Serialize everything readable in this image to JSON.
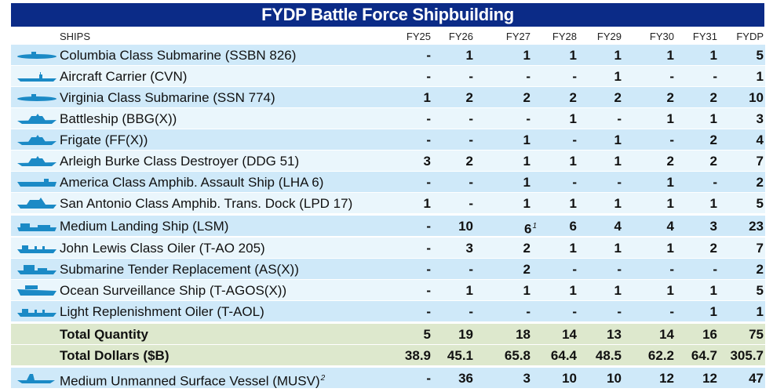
{
  "title": "FYDP Battle Force Shipbuilding",
  "header": {
    "ships": "SHIPS",
    "years": [
      "FY25",
      "FY26",
      "FY27",
      "FY28",
      "FY29",
      "FY30",
      "FY31",
      "FYDP"
    ]
  },
  "rows": [
    {
      "name": "Columbia Class Submarine (SSBN 826)",
      "icon": "submarine-icon",
      "values": [
        "-",
        "1",
        "1",
        "1",
        "1",
        "1",
        "1",
        "5"
      ]
    },
    {
      "name": "Aircraft Carrier (CVN)",
      "icon": "aircraft-carrier-icon",
      "values": [
        "-",
        "-",
        "-",
        "-",
        "1",
        "-",
        "-",
        "1"
      ]
    },
    {
      "name": "Virginia Class Submarine (SSN 774)",
      "icon": "submarine-icon",
      "values": [
        "1",
        "2",
        "2",
        "2",
        "2",
        "2",
        "2",
        "10"
      ]
    },
    {
      "name": "Battleship (BBG(X))",
      "icon": "battleship-icon",
      "values": [
        "-",
        "-",
        "-",
        "1",
        "-",
        "1",
        "1",
        "3"
      ]
    },
    {
      "name": "Frigate (FF(X))",
      "icon": "frigate-icon",
      "values": [
        "-",
        "-",
        "1",
        "-",
        "1",
        "-",
        "2",
        "4"
      ]
    },
    {
      "name": "Arleigh Burke Class Destroyer (DDG 51)",
      "icon": "destroyer-icon",
      "values": [
        "3",
        "2",
        "1",
        "1",
        "1",
        "2",
        "2",
        "7"
      ]
    },
    {
      "name": "America Class Amphib. Assault Ship (LHA 6)",
      "icon": "amphibious-assault-ship-icon",
      "values": [
        "-",
        "-",
        "1",
        "-",
        "-",
        "1",
        "-",
        "2"
      ]
    },
    {
      "name": "San Antonio Class Amphib. Trans. Dock (LPD 17)",
      "icon": "transport-dock-icon",
      "values": [
        "1",
        "-",
        "1",
        "1",
        "1",
        "1",
        "1",
        "5"
      ]
    },
    {
      "name": "Medium Landing Ship (LSM)",
      "icon": "landing-ship-icon",
      "values": [
        "-",
        "10",
        "6",
        "6",
        "4",
        "4",
        "3",
        "23"
      ],
      "footnote_col": 2,
      "footnote": "1"
    },
    {
      "name": "John Lewis Class Oiler (T-AO 205)",
      "icon": "oiler-icon",
      "values": [
        "-",
        "3",
        "2",
        "1",
        "1",
        "1",
        "2",
        "7"
      ]
    },
    {
      "name": "Submarine Tender Replacement (AS(X))",
      "icon": "submarine-tender-icon",
      "values": [
        "-",
        "-",
        "2",
        "-",
        "-",
        "-",
        "-",
        "2"
      ]
    },
    {
      "name": "Ocean Surveillance Ship (T-AGOS(X))",
      "icon": "surveillance-ship-icon",
      "values": [
        "-",
        "1",
        "1",
        "1",
        "1",
        "1",
        "1",
        "5"
      ]
    },
    {
      "name": "Light Replenishment Oiler (T-AOL)",
      "icon": "replenishment-oiler-icon",
      "values": [
        "-",
        "-",
        "-",
        "-",
        "-",
        "-",
        "1",
        "1"
      ]
    }
  ],
  "totals": [
    {
      "name": "Total Quantity",
      "values": [
        "5",
        "19",
        "18",
        "14",
        "13",
        "14",
        "16",
        "75"
      ]
    },
    {
      "name": "Total Dollars ($B)",
      "values": [
        "38.9",
        "45.1",
        "65.8",
        "64.4",
        "48.5",
        "62.2",
        "64.7",
        "305.7"
      ]
    }
  ],
  "musv": {
    "name": "Medium Unmanned Surface Vessel (MUSV)",
    "footnote": "2",
    "icon": "unmanned-vessel-icon",
    "values": [
      "-",
      "36",
      "3",
      "10",
      "10",
      "12",
      "12",
      "47"
    ]
  },
  "colors": {
    "title_bg": "#0b2b87",
    "row_dark": "#cfe9f9",
    "row_light": "#eaf6fc",
    "total_bg": "#dde8cd",
    "ship_icon": "#1b8ac6"
  },
  "chart_data": {
    "type": "table",
    "title": "FYDP Battle Force Shipbuilding",
    "columns": [
      "SHIPS",
      "FY25",
      "FY26",
      "FY27",
      "FY28",
      "FY29",
      "FY30",
      "FY31",
      "FYDP"
    ],
    "series": [
      {
        "name": "Columbia Class Submarine (SSBN 826)",
        "values": [
          "-",
          "1",
          "1",
          "1",
          "1",
          "1",
          "1",
          "5"
        ]
      },
      {
        "name": "Aircraft Carrier (CVN)",
        "values": [
          "-",
          "-",
          "-",
          "-",
          "1",
          "-",
          "-",
          "1"
        ]
      },
      {
        "name": "Virginia Class Submarine (SSN 774)",
        "values": [
          "1",
          "2",
          "2",
          "2",
          "2",
          "2",
          "2",
          "10"
        ]
      },
      {
        "name": "Battleship (BBG(X))",
        "values": [
          "-",
          "-",
          "-",
          "1",
          "-",
          "1",
          "1",
          "3"
        ]
      },
      {
        "name": "Frigate (FF(X))",
        "values": [
          "-",
          "-",
          "1",
          "-",
          "1",
          "-",
          "2",
          "4"
        ]
      },
      {
        "name": "Arleigh Burke Class Destroyer (DDG 51)",
        "values": [
          "3",
          "2",
          "1",
          "1",
          "1",
          "2",
          "2",
          "7"
        ]
      },
      {
        "name": "America Class Amphib. Assault Ship (LHA 6)",
        "values": [
          "-",
          "-",
          "1",
          "-",
          "-",
          "1",
          "-",
          "2"
        ]
      },
      {
        "name": "San Antonio Class Amphib. Trans. Dock (LPD 17)",
        "values": [
          "1",
          "-",
          "1",
          "1",
          "1",
          "1",
          "1",
          "5"
        ]
      },
      {
        "name": "Medium Landing Ship (LSM)",
        "values": [
          "-",
          "10",
          "6",
          "6",
          "4",
          "4",
          "3",
          "23"
        ]
      },
      {
        "name": "John Lewis Class Oiler (T-AO 205)",
        "values": [
          "-",
          "3",
          "2",
          "1",
          "1",
          "1",
          "2",
          "7"
        ]
      },
      {
        "name": "Submarine Tender Replacement (AS(X))",
        "values": [
          "-",
          "-",
          "2",
          "-",
          "-",
          "-",
          "-",
          "2"
        ]
      },
      {
        "name": "Ocean Surveillance Ship (T-AGOS(X))",
        "values": [
          "-",
          "1",
          "1",
          "1",
          "1",
          "1",
          "1",
          "5"
        ]
      },
      {
        "name": "Light Replenishment Oiler (T-AOL)",
        "values": [
          "-",
          "-",
          "-",
          "-",
          "-",
          "-",
          "1",
          "1"
        ]
      },
      {
        "name": "Total Quantity",
        "values": [
          "5",
          "19",
          "18",
          "14",
          "13",
          "14",
          "16",
          "75"
        ]
      },
      {
        "name": "Total Dollars ($B)",
        "values": [
          "38.9",
          "45.1",
          "65.8",
          "64.4",
          "48.5",
          "62.2",
          "64.7",
          "305.7"
        ]
      },
      {
        "name": "Medium Unmanned Surface Vessel (MUSV)",
        "values": [
          "-",
          "36",
          "3",
          "10",
          "10",
          "12",
          "12",
          "47"
        ]
      }
    ]
  }
}
